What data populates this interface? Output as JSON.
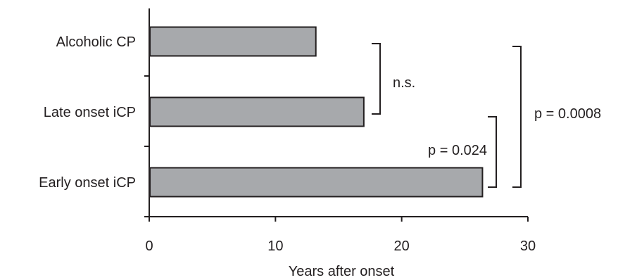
{
  "chart_data": {
    "type": "bar",
    "orientation": "horizontal",
    "title": "",
    "xlabel": "Years after onset",
    "ylabel": "",
    "xlim": [
      0,
      30
    ],
    "x_ticks": [
      0,
      10,
      20,
      30
    ],
    "categories": [
      "Alcoholic CP",
      "Late onset iCP",
      "Early onset iCP"
    ],
    "values": [
      13.2,
      17.0,
      26.4
    ],
    "grid": false,
    "legend": "none",
    "annotations": [
      {
        "label": "n.s.",
        "compares": [
          "Alcoholic CP",
          "Late onset iCP"
        ]
      },
      {
        "label": "p = 0.024",
        "compares": [
          "Late onset iCP",
          "Early onset iCP"
        ]
      },
      {
        "label": "p = 0.0008",
        "compares": [
          "Alcoholic CP",
          "Early onset iCP"
        ]
      }
    ]
  },
  "colors": {
    "bar_fill": "#a7a9ac",
    "bar_stroke": "#231f20",
    "axis": "#231f20",
    "text": "#231f20"
  }
}
